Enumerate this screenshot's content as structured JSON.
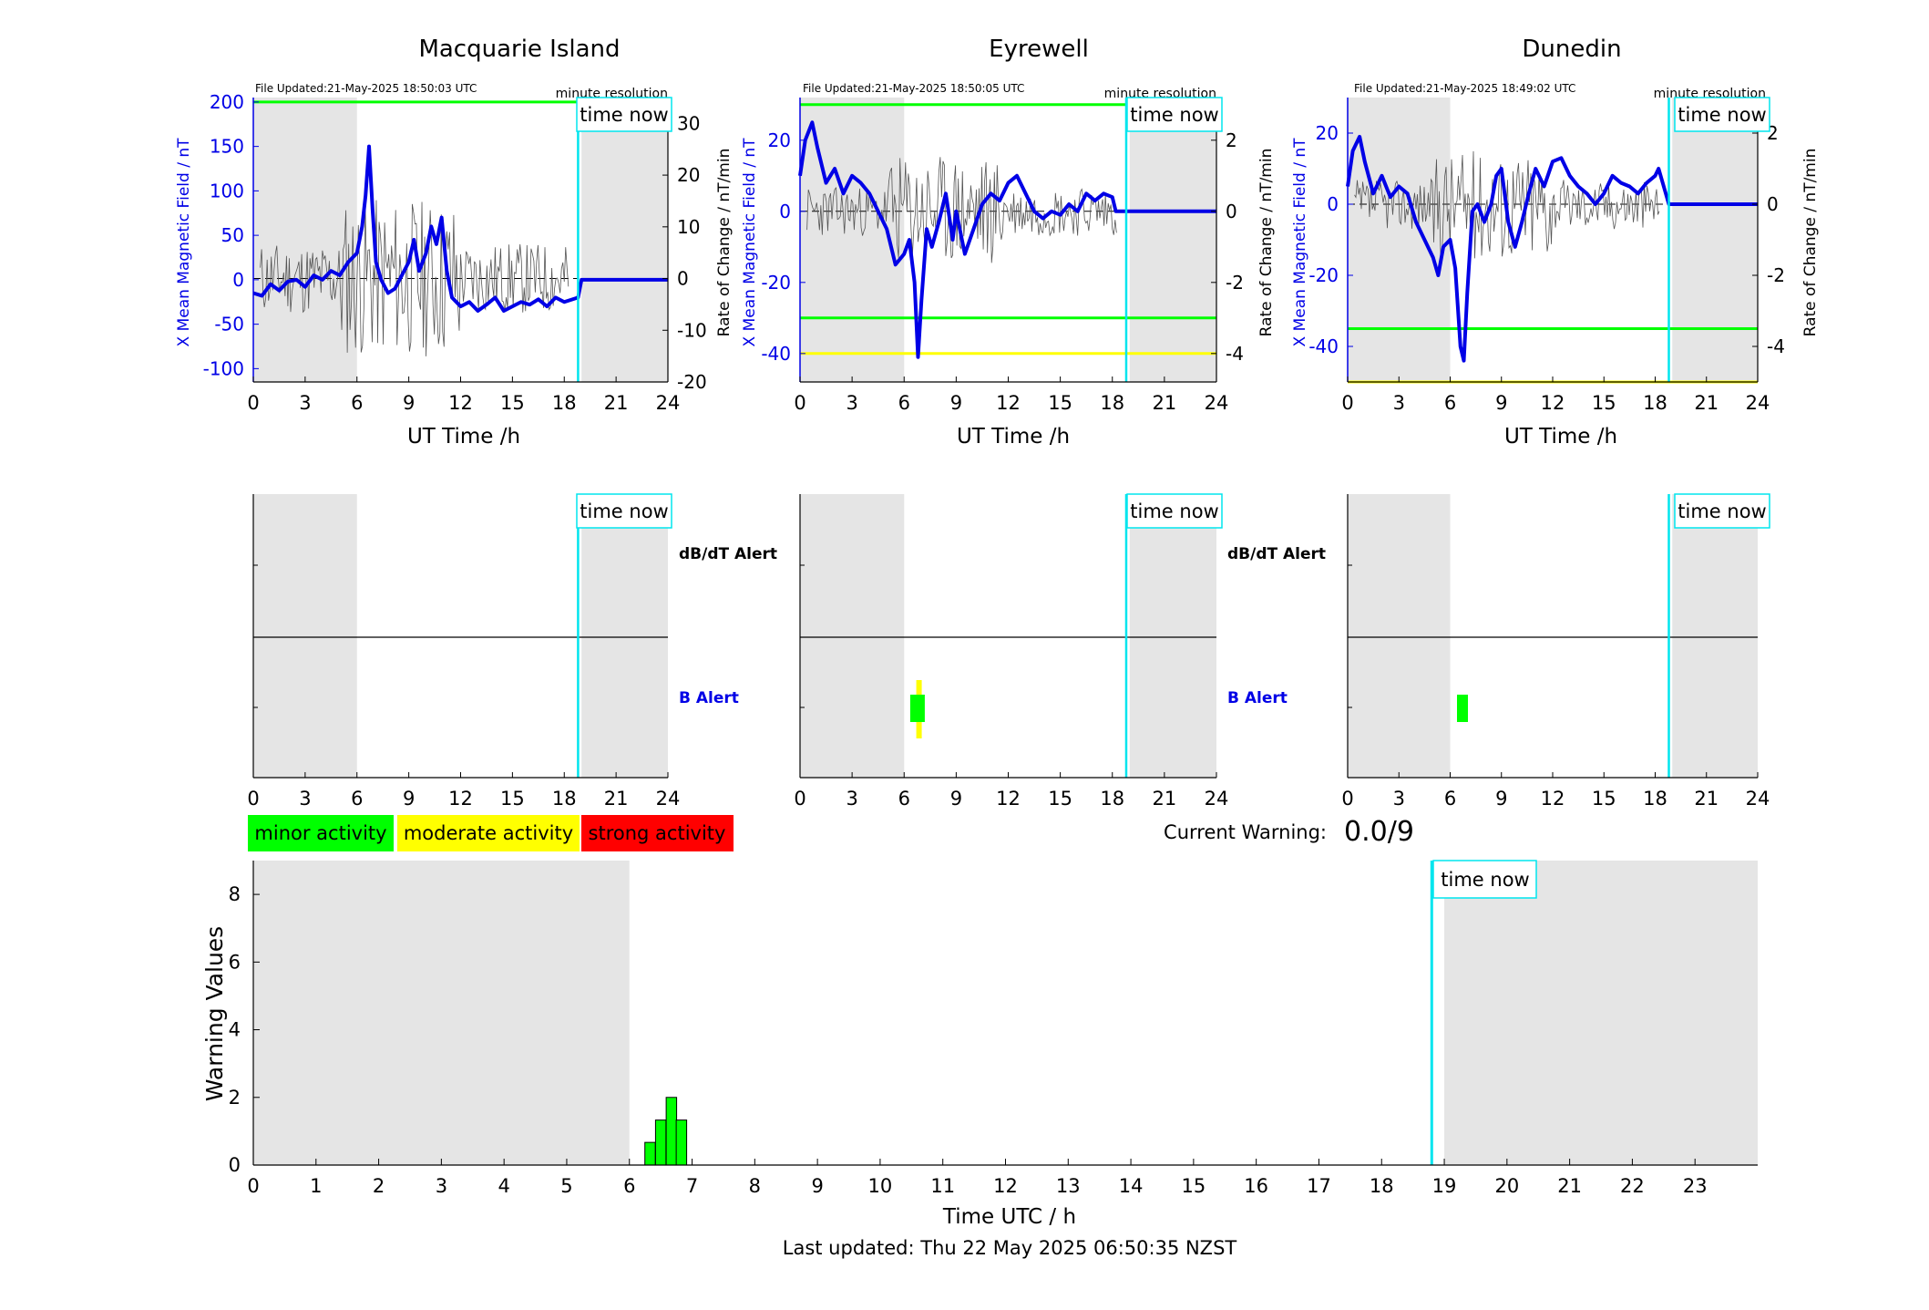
{
  "panels": [
    {
      "title": "Macquarie Island",
      "file_updated": "File Updated:21-May-2025 18:50:03 UTC",
      "resolution": "minute resolution",
      "time_now_label": "time now",
      "left_ylabel": "X Mean Magnetic Field / nT",
      "right_ylabel": "Rate of Change / nT/min",
      "xlabel": "UT Time /h",
      "left_yticks": [
        "-100",
        "-50",
        "0",
        "50",
        "100",
        "150",
        "200"
      ],
      "right_yticks": [
        "-20",
        "-10",
        "0",
        "10",
        "20",
        "30"
      ],
      "xticks": [
        "0",
        "3",
        "6",
        "9",
        "12",
        "15",
        "18",
        "21",
        "24"
      ],
      "alert_labels": {
        "dbdt": "dB/dT Alert",
        "b": "B Alert"
      }
    },
    {
      "title": "Eyrewell",
      "file_updated": "File Updated:21-May-2025 18:50:05 UTC",
      "resolution": "minute resolution",
      "time_now_label": "time now",
      "left_ylabel": "X Mean Magnetic Field / nT",
      "right_ylabel": "Rate of Change / nT/min",
      "xlabel": "UT Time /h",
      "left_yticks": [
        "-40",
        "-20",
        "0",
        "20"
      ],
      "right_yticks": [
        "-4",
        "-2",
        "0",
        "2"
      ],
      "xticks": [
        "0",
        "3",
        "6",
        "9",
        "12",
        "15",
        "18",
        "21",
        "24"
      ],
      "alert_labels": {
        "dbdt": "dB/dT Alert",
        "b": "B Alert"
      }
    },
    {
      "title": "Dunedin",
      "file_updated": "File Updated:21-May-2025 18:49:02 UTC",
      "resolution": "minute resolution",
      "time_now_label": "time now",
      "left_ylabel": "X Mean Magnetic Field / nT",
      "right_ylabel": "Rate of Change / nT/min",
      "xlabel": "UT Time /h",
      "left_yticks": [
        "-40",
        "-20",
        "0",
        "20"
      ],
      "right_yticks": [
        "-4",
        "-2",
        "0",
        "2"
      ],
      "xticks": [
        "0",
        "3",
        "6",
        "9",
        "12",
        "15",
        "18",
        "21",
        "24"
      ]
    }
  ],
  "legend": {
    "minor": "minor activity",
    "moderate": "moderate activity",
    "strong": "strong activity",
    "colors": {
      "minor": "#00ff00",
      "moderate": "#ffff00",
      "strong": "#ff0000"
    }
  },
  "current_warning": {
    "label": "Current Warning:",
    "value": "0.0/9"
  },
  "warning_chart": {
    "ylabel": "Warning Values",
    "xlabel": "Time UTC / h",
    "yticks": [
      "0",
      "2",
      "4",
      "6",
      "8"
    ],
    "xticks": [
      "0",
      "1",
      "2",
      "3",
      "4",
      "5",
      "6",
      "7",
      "8",
      "9",
      "10",
      "11",
      "12",
      "13",
      "14",
      "15",
      "16",
      "17",
      "18",
      "19",
      "20",
      "21",
      "22",
      "23"
    ],
    "time_now_label": "time now"
  },
  "footer": "Last updated: Thu 22 May 2025 06:50:35 NZST",
  "colors": {
    "mean_field": "#0000e6",
    "time_now": "#00e5ee",
    "shade": "#e5e5e5",
    "threshold_green": "#00ff00",
    "threshold_yellow": "#ffff00"
  },
  "chart_data": [
    {
      "type": "line",
      "title": "Macquarie Island",
      "xlabel": "UT Time /h",
      "ylabel": "X Mean Magnetic Field / nT",
      "y2label": "Rate of Change / nT/min",
      "xlim": [
        0,
        24
      ],
      "ylim": [
        -115,
        205
      ],
      "y2lim": [
        -20,
        35
      ],
      "time_now": 18.8,
      "shaded": [
        [
          0,
          6
        ],
        [
          19,
          24
        ]
      ],
      "thresholds": [
        {
          "value": 200,
          "color": "green"
        }
      ],
      "series": [
        {
          "values": [
            [
              0,
              -15
            ],
            [
              0.5,
              -18
            ],
            [
              1,
              -5
            ],
            [
              1.5,
              -12
            ],
            [
              2,
              -2
            ],
            [
              2.5,
              0
            ],
            [
              3,
              -8
            ],
            [
              3.5,
              5
            ],
            [
              4,
              0
            ],
            [
              4.5,
              10
            ],
            [
              5,
              5
            ],
            [
              5.5,
              20
            ],
            [
              6,
              30
            ],
            [
              6.3,
              60
            ],
            [
              6.5,
              95
            ],
            [
              6.7,
              150
            ],
            [
              6.9,
              80
            ],
            [
              7.1,
              20
            ],
            [
              7.4,
              0
            ],
            [
              7.8,
              -15
            ],
            [
              8.2,
              -10
            ],
            [
              8.6,
              5
            ],
            [
              9,
              20
            ],
            [
              9.3,
              45
            ],
            [
              9.6,
              10
            ],
            [
              10,
              30
            ],
            [
              10.3,
              60
            ],
            [
              10.6,
              40
            ],
            [
              10.9,
              70
            ],
            [
              11.2,
              10
            ],
            [
              11.5,
              -20
            ],
            [
              12,
              -30
            ],
            [
              12.5,
              -25
            ],
            [
              13,
              -35
            ],
            [
              13.5,
              -28
            ],
            [
              14,
              -20
            ],
            [
              14.5,
              -35
            ],
            [
              15,
              -30
            ],
            [
              15.5,
              -25
            ],
            [
              16,
              -28
            ],
            [
              16.5,
              -22
            ],
            [
              17,
              -30
            ],
            [
              17.5,
              -20
            ],
            [
              18,
              -25
            ],
            [
              18.8,
              -20
            ],
            [
              19,
              0
            ],
            [
              24,
              0
            ]
          ]
        }
      ]
    },
    {
      "type": "line",
      "title": "Eyrewell",
      "xlabel": "UT Time /h",
      "ylabel": "X Mean Magnetic Field / nT",
      "y2label": "Rate of Change / nT/min",
      "xlim": [
        0,
        24
      ],
      "ylim": [
        -48,
        32
      ],
      "y2lim": [
        -4.8,
        3.2
      ],
      "time_now": 18.8,
      "shaded": [
        [
          0,
          6
        ],
        [
          19,
          24
        ]
      ],
      "thresholds": [
        {
          "value": 30,
          "color": "green"
        },
        {
          "value": -30,
          "color": "green"
        },
        {
          "value": -40,
          "color": "yellow"
        }
      ],
      "series": [
        {
          "values": [
            [
              0,
              10
            ],
            [
              0.3,
              20
            ],
            [
              0.7,
              25
            ],
            [
              1,
              18
            ],
            [
              1.5,
              8
            ],
            [
              2,
              12
            ],
            [
              2.5,
              5
            ],
            [
              3,
              10
            ],
            [
              3.5,
              8
            ],
            [
              4,
              5
            ],
            [
              4.5,
              0
            ],
            [
              5,
              -5
            ],
            [
              5.5,
              -15
            ],
            [
              6,
              -12
            ],
            [
              6.3,
              -8
            ],
            [
              6.6,
              -20
            ],
            [
              6.8,
              -41
            ],
            [
              7,
              -25
            ],
            [
              7.3,
              -5
            ],
            [
              7.6,
              -10
            ],
            [
              8,
              -3
            ],
            [
              8.4,
              5
            ],
            [
              8.8,
              -8
            ],
            [
              9,
              0
            ],
            [
              9.5,
              -12
            ],
            [
              10,
              -5
            ],
            [
              10.5,
              2
            ],
            [
              11,
              5
            ],
            [
              11.5,
              3
            ],
            [
              12,
              8
            ],
            [
              12.5,
              10
            ],
            [
              13,
              5
            ],
            [
              13.5,
              0
            ],
            [
              14,
              -2
            ],
            [
              14.5,
              0
            ],
            [
              15,
              -1
            ],
            [
              15.5,
              2
            ],
            [
              16,
              0
            ],
            [
              16.5,
              5
            ],
            [
              17,
              3
            ],
            [
              17.5,
              5
            ],
            [
              18,
              4
            ],
            [
              18.2,
              0
            ],
            [
              24,
              0
            ]
          ]
        }
      ]
    },
    {
      "type": "line",
      "title": "Dunedin",
      "xlabel": "UT Time /h",
      "ylabel": "X Mean Magnetic Field / nT",
      "y2label": "Rate of Change / nT/min",
      "xlim": [
        0,
        24
      ],
      "ylim": [
        -50,
        30
      ],
      "y2lim": [
        -5,
        3
      ],
      "time_now": 18.8,
      "shaded": [
        [
          0,
          6
        ],
        [
          19,
          24
        ]
      ],
      "thresholds": [
        {
          "value": -35,
          "color": "green"
        },
        {
          "value": -50,
          "color": "yellow"
        }
      ],
      "series": [
        {
          "values": [
            [
              0,
              5
            ],
            [
              0.3,
              15
            ],
            [
              0.7,
              19
            ],
            [
              1,
              12
            ],
            [
              1.5,
              3
            ],
            [
              2,
              8
            ],
            [
              2.5,
              2
            ],
            [
              3,
              5
            ],
            [
              3.5,
              3
            ],
            [
              4,
              -5
            ],
            [
              4.5,
              -10
            ],
            [
              5,
              -15
            ],
            [
              5.3,
              -20
            ],
            [
              5.6,
              -12
            ],
            [
              6,
              -10
            ],
            [
              6.3,
              -18
            ],
            [
              6.6,
              -40
            ],
            [
              6.8,
              -44
            ],
            [
              7,
              -25
            ],
            [
              7.3,
              -2
            ],
            [
              7.6,
              0
            ],
            [
              8,
              -5
            ],
            [
              8.4,
              0
            ],
            [
              8.7,
              8
            ],
            [
              9,
              10
            ],
            [
              9.4,
              -5
            ],
            [
              9.8,
              -12
            ],
            [
              10.2,
              -5
            ],
            [
              10.6,
              3
            ],
            [
              11,
              10
            ],
            [
              11.5,
              5
            ],
            [
              12,
              12
            ],
            [
              12.5,
              13
            ],
            [
              13,
              8
            ],
            [
              13.5,
              5
            ],
            [
              14,
              3
            ],
            [
              14.5,
              0
            ],
            [
              15,
              3
            ],
            [
              15.5,
              8
            ],
            [
              16,
              6
            ],
            [
              16.5,
              5
            ],
            [
              17,
              3
            ],
            [
              17.5,
              6
            ],
            [
              18,
              8
            ],
            [
              18.2,
              10
            ],
            [
              18.8,
              0
            ],
            [
              24,
              0
            ]
          ]
        }
      ]
    },
    {
      "type": "bar",
      "title": "",
      "xlabel": "Time UTC / h",
      "ylabel": "Warning Values",
      "xlim": [
        0,
        24
      ],
      "ylim": [
        0,
        9
      ],
      "time_now": 18.8,
      "shaded": [
        [
          0,
          6
        ],
        [
          19,
          24
        ]
      ],
      "bars": [
        {
          "x": 6.33,
          "value": 0.67
        },
        {
          "x": 6.5,
          "value": 1.33
        },
        {
          "x": 6.67,
          "value": 2
        },
        {
          "x": 6.83,
          "value": 1.33
        }
      ]
    }
  ]
}
